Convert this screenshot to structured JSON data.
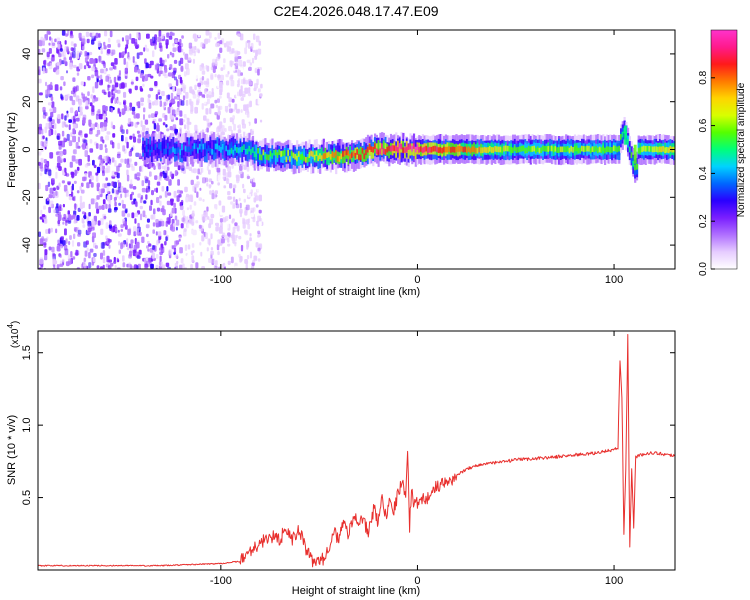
{
  "title": "C2E4.2026.048.17.47.E09",
  "chart_data": [
    {
      "type": "heatmap",
      "name": "spectrogram",
      "xlabel": "Height of straight line (km)",
      "ylabel": "Frequency (Hz)",
      "xlim": [
        -193,
        131
      ],
      "ylim": [
        -50,
        50
      ],
      "xticks": [
        -100,
        0,
        100
      ],
      "yticks": [
        -40,
        -20,
        0,
        20,
        40
      ],
      "colorbar": {
        "label": "Normalized spectral amplitude",
        "range": [
          0,
          1
        ],
        "ticks": [
          0.0,
          0.2,
          0.4,
          0.6,
          0.8
        ],
        "tick_labels": [
          "0.0",
          "0.2",
          "0.4",
          "0.6",
          "0.8"
        ],
        "colormap": [
          "#ffffff",
          "#e6ccff",
          "#b070ff",
          "#7a1fff",
          "#2a00ff",
          "#0066ff",
          "#00d2ff",
          "#00ff7a",
          "#55ff00",
          "#d8ff00",
          "#ffd400",
          "#ff7a00",
          "#ff1a1a",
          "#ff1a8c",
          "#ff33cc"
        ]
      },
      "noise_region_x": [
        -193,
        -90
      ],
      "band_center_freq": 0,
      "band_features": [
        {
          "x": -130,
          "freq": 0,
          "amplitude": 0.35
        },
        {
          "x": -100,
          "freq": 0,
          "amplitude": 0.4
        },
        {
          "x": -80,
          "freq": -2,
          "amplitude": 0.55
        },
        {
          "x": -60,
          "freq": -3,
          "amplitude": 0.6
        },
        {
          "x": -45,
          "freq": -3,
          "amplitude": 0.75
        },
        {
          "x": -30,
          "freq": -2,
          "amplitude": 0.85
        },
        {
          "x": -20,
          "freq": 0,
          "amplitude": 0.9
        },
        {
          "x": 0,
          "freq": 0,
          "amplitude": 0.95
        },
        {
          "x": 50,
          "freq": 0,
          "amplitude": 0.6
        },
        {
          "x": 100,
          "freq": 0,
          "amplitude": 0.6
        },
        {
          "x": 105,
          "freq": 8,
          "amplitude": 0.5
        },
        {
          "x": 110,
          "freq": -8,
          "amplitude": 0.55
        },
        {
          "x": 125,
          "freq": 0,
          "amplitude": 0.7
        }
      ]
    },
    {
      "type": "line",
      "name": "snr",
      "xlabel": "Height of straight line (km)",
      "ylabel": "SNR (10 * v/v)",
      "multiplier_label": "(x10",
      "multiplier_exp": "4",
      "xlim": [
        -193,
        131
      ],
      "ylim": [
        0,
        16500
      ],
      "xticks": [
        -100,
        0,
        100
      ],
      "yticks": [
        5000,
        10000,
        15000
      ],
      "ytick_labels": [
        "0.5",
        "1.0",
        "1.5"
      ],
      "color": "#e8302e",
      "series": [
        {
          "name": "SNR",
          "x": [
            -193,
            -160,
            -130,
            -100,
            -90,
            -85,
            -80,
            -75,
            -70,
            -67,
            -64,
            -60,
            -57,
            -54,
            -50,
            -47,
            -45,
            -43,
            -40,
            -38,
            -35,
            -32,
            -30,
            -28,
            -25,
            -22,
            -20,
            -18,
            -16,
            -14,
            -12,
            -10,
            -8,
            -6,
            -5,
            -4,
            -3,
            -2,
            0,
            5,
            10,
            15,
            20,
            25,
            30,
            35,
            40,
            50,
            60,
            70,
            80,
            90,
            95,
            100,
            102,
            103,
            104,
            105,
            106,
            107,
            108,
            109,
            110,
            111,
            113,
            115,
            120,
            125,
            131
          ],
          "y": [
            300,
            300,
            300,
            450,
            600,
            1400,
            1800,
            2400,
            2000,
            3000,
            2000,
            2800,
            1500,
            700,
            500,
            900,
            1600,
            2800,
            2000,
            3300,
            2500,
            4000,
            3000,
            3500,
            2600,
            4300,
            3200,
            5000,
            3700,
            4900,
            4200,
            5200,
            6200,
            5200,
            8000,
            3000,
            5500,
            4700,
            4700,
            5000,
            5800,
            6000,
            6500,
            7000,
            7200,
            7350,
            7400,
            7600,
            7700,
            7800,
            7950,
            8050,
            8200,
            8300,
            8400,
            14500,
            12000,
            2500,
            7000,
            16200,
            1500,
            7000,
            3000,
            7800,
            7900,
            8000,
            8100,
            8000,
            7900
          ]
        }
      ]
    }
  ]
}
